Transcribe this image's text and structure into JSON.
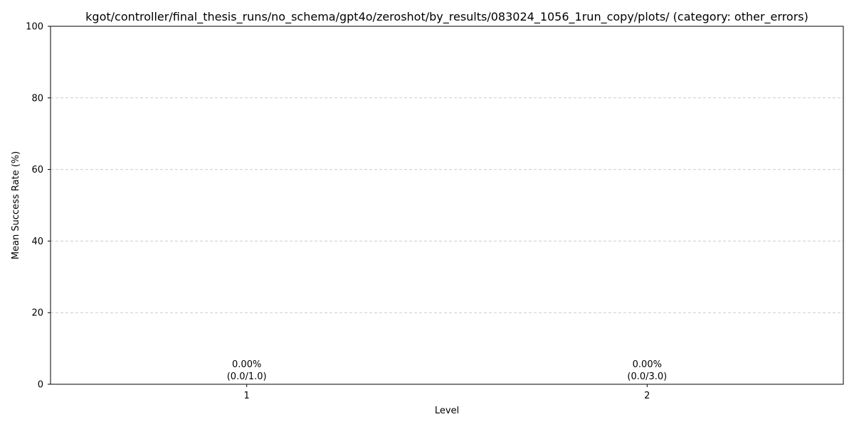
{
  "chart_data": {
    "type": "bar",
    "title": "kgot/controller/final_thesis_runs/no_schema/gpt4o/zeroshot/by_results/083024_1056_1run_copy/plots/ (category: other_errors)",
    "xlabel": "Level",
    "ylabel": "Mean Success Rate (%)",
    "categories": [
      "1",
      "2"
    ],
    "values": [
      0,
      0
    ],
    "bar_labels": [
      {
        "pct": "0.00%",
        "ratio": "(0.0/1.0)"
      },
      {
        "pct": "0.00%",
        "ratio": "(0.0/3.0)"
      }
    ],
    "ylim": [
      0,
      100
    ],
    "yticks": [
      0,
      20,
      40,
      60,
      80,
      100
    ],
    "grid": "horizontal dashed",
    "legend": "none",
    "colors": {
      "bar": "#1f77b4",
      "grid": "#cccccc",
      "axis": "#000000"
    }
  }
}
